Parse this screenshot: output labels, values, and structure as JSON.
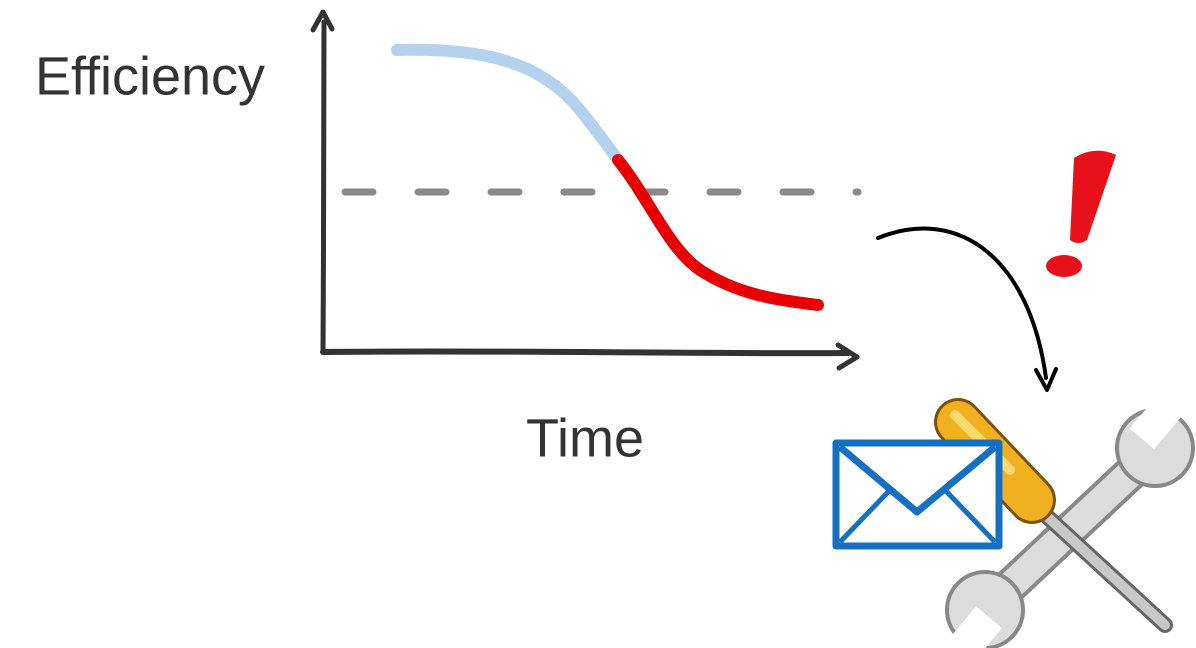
{
  "labels": {
    "y_axis": "Efficiency",
    "x_axis": "Time"
  }
}
